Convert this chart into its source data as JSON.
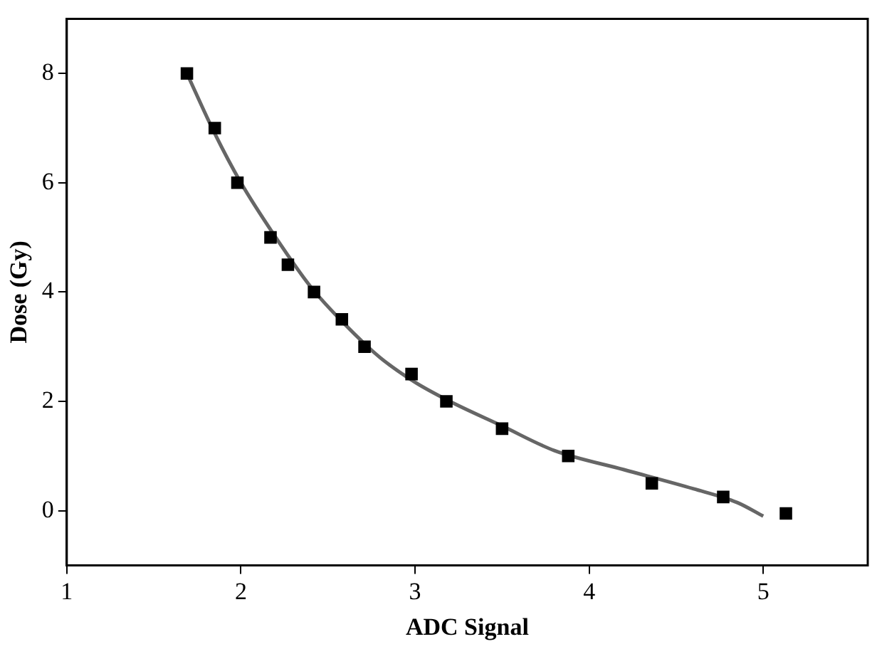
{
  "chart_data": {
    "type": "scatter",
    "xlabel": "ADC Signal",
    "ylabel": "Dose (Gy)",
    "xlim": [
      1,
      5.6
    ],
    "xticks": [
      1,
      2,
      3,
      4,
      5
    ],
    "ylim": [
      -1,
      9
    ],
    "yticks": [
      0,
      2,
      4,
      6,
      8
    ],
    "grid": false,
    "legend": false,
    "marker": "square",
    "series": [
      {
        "type": "scatter",
        "color": "#000000",
        "x": [
          1.69,
          1.85,
          1.98,
          2.17,
          2.27,
          2.42,
          2.58,
          2.71,
          2.98,
          3.18,
          3.5,
          3.88,
          4.36,
          4.77,
          5.13
        ],
        "values": [
          8,
          7,
          6,
          5,
          4.5,
          4,
          3.5,
          3,
          2.5,
          2,
          1.5,
          1,
          0.5,
          0.25,
          -0.05
        ]
      },
      {
        "type": "line",
        "color": "#666666",
        "marker": "none",
        "x": [
          1.69,
          1.85,
          2.0,
          2.2,
          2.4,
          2.6,
          2.8,
          3.0,
          3.2,
          3.5,
          3.8,
          4.2,
          4.6,
          4.85,
          5.0
        ],
        "values": [
          8.0,
          6.9,
          6.0,
          5.0,
          4.1,
          3.4,
          2.8,
          2.35,
          2.0,
          1.55,
          1.1,
          0.75,
          0.4,
          0.15,
          -0.1
        ]
      }
    ]
  }
}
